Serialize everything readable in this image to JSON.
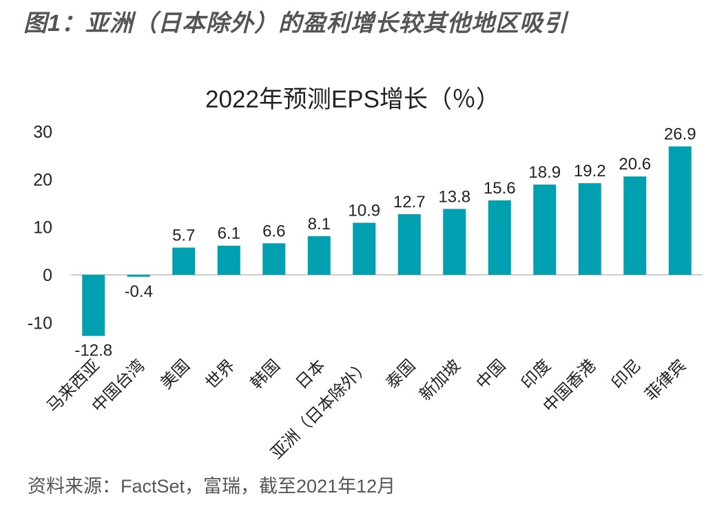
{
  "figure_title": "图1：亚洲（日本除外）的盈利增长较其他地区吸引",
  "source": "资料来源：FactSet，富瑞，截至2021年12月",
  "colors": {
    "bar": "#00A0B0",
    "axis": "#BBBBBB",
    "text": "#222222",
    "title": "#555555"
  },
  "chart_data": {
    "type": "bar",
    "title": "2022年预测EPS增长（％）",
    "xlabel": "",
    "ylabel": "",
    "ylim": [
      -15,
      30
    ],
    "yticks": [
      30,
      20,
      10,
      0,
      -10
    ],
    "grid": false,
    "categories": [
      "马来西亚",
      "中国台湾",
      "美国",
      "世界",
      "韩国",
      "日本",
      "亚洲（日本除外）",
      "泰国",
      "新加坡",
      "中国",
      "印度",
      "中国香港",
      "印尼",
      "菲律宾"
    ],
    "values": [
      -12.8,
      -0.4,
      5.7,
      6.1,
      6.6,
      8.1,
      10.9,
      12.7,
      13.8,
      15.6,
      18.9,
      19.2,
      20.6,
      26.9
    ],
    "data_labels": [
      "-12.8",
      "-0.4",
      "5.7",
      "6.1",
      "6.6",
      "8.1",
      "10.9",
      "12.7",
      "13.8",
      "15.6",
      "18.9",
      "19.2",
      "20.6",
      "26.9"
    ]
  }
}
